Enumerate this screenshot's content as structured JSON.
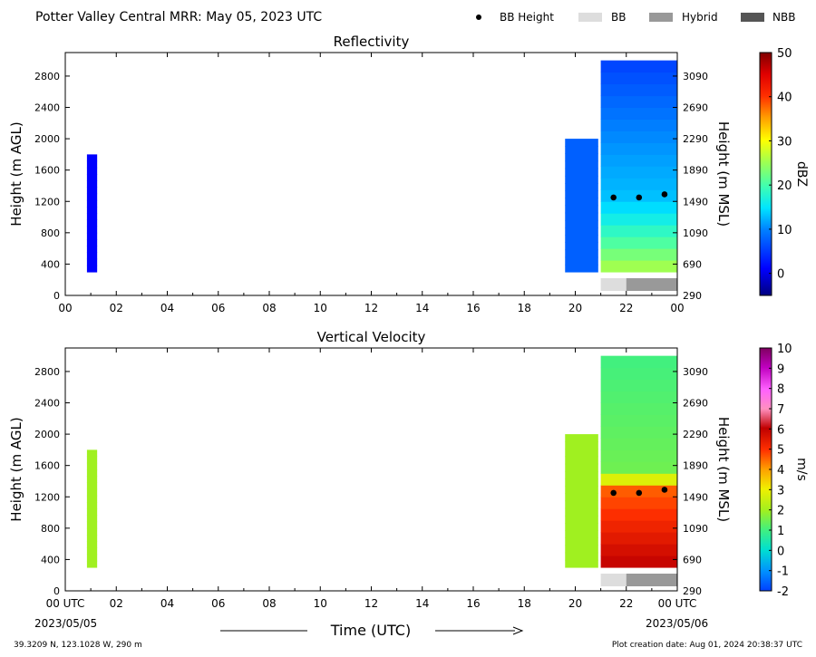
{
  "header": {
    "title": "Potter Valley Central MRR:  May 05, 2023 UTC",
    "legend": [
      {
        "label": "BB Height",
        "kind": "dot",
        "color": "#000000"
      },
      {
        "label": "BB",
        "kind": "bar",
        "color": "#dddddd"
      },
      {
        "label": "Hybrid",
        "kind": "bar",
        "color": "#999999"
      },
      {
        "label": "NBB",
        "kind": "bar",
        "color": "#555555"
      }
    ]
  },
  "footer": {
    "location": "39.3209 N, 123.1028 W, 290 m",
    "created": "Plot creation date: Aug 01, 2024 20:38:37 UTC",
    "time_label": "Time (UTC)",
    "start_label": "00 UTC",
    "start_date": "2023/05/05",
    "end_label": "00 UTC",
    "end_date": "2023/05/06"
  },
  "chart_data": [
    {
      "type": "heatmap",
      "title": "Reflectivity",
      "xlabel": "",
      "ylabel": "Height (m AGL)",
      "ylabel_right": "Height (m MSL)",
      "xlim": [
        0,
        24
      ],
      "ylim": [
        0,
        3100
      ],
      "x_ticks": [
        "00",
        "02",
        "04",
        "06",
        "08",
        "10",
        "12",
        "14",
        "16",
        "18",
        "20",
        "22",
        "00"
      ],
      "y_ticks": [
        0,
        400,
        800,
        1200,
        1600,
        2000,
        2400,
        2800
      ],
      "y_ticks_right": [
        290,
        690,
        1090,
        1490,
        1890,
        2290,
        2690,
        3090
      ],
      "colorbar": {
        "label": "dBZ",
        "min": -5,
        "max": 50,
        "ticks": [
          0,
          10,
          20,
          30,
          40,
          50
        ]
      },
      "bb_height": [
        {
          "time": 21.5,
          "height": 1250
        },
        {
          "time": 22.5,
          "height": 1250
        },
        {
          "time": 23.5,
          "height": 1290
        }
      ],
      "bb_type": [
        {
          "start": 21.0,
          "end": 22.0,
          "type": "BB"
        },
        {
          "start": 22.0,
          "end": 24.0,
          "type": "Hybrid"
        }
      ],
      "precip": [
        {
          "start": 0.85,
          "end": 1.25,
          "bottom": 300,
          "top": 1800,
          "value": 0
        },
        {
          "start": 19.6,
          "end": 20.9,
          "bottom": 300,
          "top": 2000,
          "value": 6
        },
        {
          "start": 21.0,
          "end": 24.0,
          "bottom": 300,
          "top": 3000,
          "value": 12
        }
      ]
    },
    {
      "type": "heatmap",
      "title": "Vertical Velocity",
      "xlabel": "Time (UTC)",
      "ylabel": "Height (m AGL)",
      "ylabel_right": "Height (m MSL)",
      "xlim": [
        0,
        24
      ],
      "ylim": [
        0,
        3100
      ],
      "x_ticks": [
        "00 UTC",
        "02",
        "04",
        "06",
        "08",
        "10",
        "12",
        "14",
        "16",
        "18",
        "20",
        "22",
        "00 UTC"
      ],
      "y_ticks": [
        0,
        400,
        800,
        1200,
        1600,
        2000,
        2400,
        2800
      ],
      "y_ticks_right": [
        290,
        690,
        1090,
        1490,
        1890,
        2290,
        2690,
        3090
      ],
      "colorbar": {
        "label": "m/s",
        "min": -2,
        "max": 10,
        "ticks": [
          -2,
          -1,
          0,
          1,
          2,
          3,
          4,
          5,
          6,
          7,
          8,
          9,
          10
        ]
      },
      "bb_height": [
        {
          "time": 21.5,
          "height": 1250
        },
        {
          "time": 22.5,
          "height": 1250
        },
        {
          "time": 23.5,
          "height": 1290
        }
      ],
      "bb_type": [
        {
          "start": 21.0,
          "end": 22.0,
          "type": "BB"
        },
        {
          "start": 22.0,
          "end": 24.0,
          "type": "Hybrid"
        }
      ],
      "precip": [
        {
          "start": 0.85,
          "end": 1.25,
          "bottom": 300,
          "top": 1800,
          "value": 2
        },
        {
          "start": 19.6,
          "end": 20.9,
          "bottom": 300,
          "top": 2000,
          "value": 2
        },
        {
          "start": 21.0,
          "end": 24.0,
          "bottom": 300,
          "top": 3000,
          "value": 1
        }
      ]
    }
  ]
}
